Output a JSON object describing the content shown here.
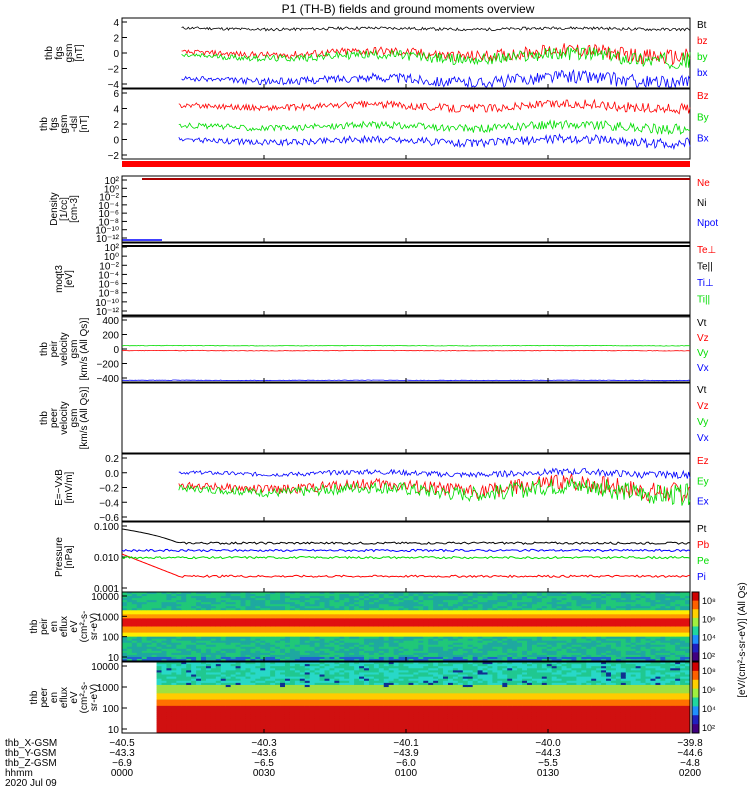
{
  "title": "P1 (TH-B) fields and ground moments overview",
  "chart_data": [
    {
      "type": "line",
      "ylabel": [
        "thb",
        "fgs",
        "gsm",
        "[nT]"
      ],
      "yticks": [
        "4",
        "2",
        "0",
        "−2",
        "−4"
      ],
      "ylim": [
        -4,
        4.5
      ],
      "series": [
        {
          "name": "Bt",
          "color": "#000000",
          "level": 3.2
        },
        {
          "name": "bz",
          "color": "#ff0000",
          "level": 0.2
        },
        {
          "name": "by",
          "color": "#00dd00",
          "level": -0.2
        },
        {
          "name": "bx",
          "color": "#0000ff",
          "level": -3.0
        }
      ]
    },
    {
      "type": "line",
      "ylabel": [
        "thb",
        "fgs",
        "gsm",
        "-dsl",
        "[nT]"
      ],
      "yticks": [
        "6",
        "4",
        "2",
        "0",
        "−2"
      ],
      "ylim": [
        -2.8,
        6.5
      ],
      "series": [
        {
          "name": "Bz",
          "color": "#ff0000",
          "level": 4.2
        },
        {
          "name": "By",
          "color": "#00dd00",
          "level": 1.5
        },
        {
          "name": "Bx",
          "color": "#0000ff",
          "level": -0.4
        }
      ]
    },
    {
      "type": "line",
      "ylabel": [
        "Density",
        "[1/cc]",
        "[cm-3]"
      ],
      "yticks": [
        "10²",
        "10⁰",
        "10⁻²",
        "10⁻⁴",
        "10⁻⁶",
        "10⁻⁸",
        "10⁻¹⁰",
        "10⁻¹²"
      ],
      "ylim": [
        -13,
        2
      ],
      "series": [
        {
          "name": "Ne",
          "color": "#ff0000"
        },
        {
          "name": "Ni",
          "color": "#000000"
        },
        {
          "name": "Npot",
          "color": "#0000ff"
        }
      ]
    },
    {
      "type": "line",
      "ylabel": [
        "moqt3",
        "[eV]"
      ],
      "yticks": [
        "10²",
        "10⁰",
        "10⁻²",
        "10⁻⁴",
        "10⁻⁶",
        "10⁻⁸",
        "10⁻¹⁰",
        "10⁻¹²"
      ],
      "ylim": [
        -13,
        2
      ],
      "series": [
        {
          "name": "Te⊥",
          "color": "#ff0000"
        },
        {
          "name": "Te||",
          "color": "#000000"
        },
        {
          "name": "Ti⊥",
          "color": "#0000ff"
        },
        {
          "name": "Ti||",
          "color": "#00dd00"
        }
      ]
    },
    {
      "type": "line",
      "ylabel": [
        "thb",
        "peir",
        "velocity",
        "gsm",
        "[km/s (All Qs)]"
      ],
      "yticks": [
        "400",
        "200",
        "0",
        "−200",
        "−400"
      ],
      "ylim": [
        -400,
        400
      ],
      "series": [
        {
          "name": "Vt",
          "color": "#000000",
          "level": 400
        },
        {
          "name": "Vz",
          "color": "#ff0000",
          "level": -20
        },
        {
          "name": "Vy",
          "color": "#00dd00",
          "level": 40
        },
        {
          "name": "Vx",
          "color": "#0000ff",
          "level": -380
        }
      ]
    },
    {
      "type": "line",
      "ylabel": [
        "thb",
        "peer",
        "velocity",
        "gsm",
        "[km/s (All Qs)]"
      ],
      "yticks": [],
      "ylim": [
        0,
        1
      ],
      "series": [
        {
          "name": "Vt",
          "color": "#000000"
        },
        {
          "name": "Vz",
          "color": "#ff0000"
        },
        {
          "name": "Vy",
          "color": "#00dd00"
        },
        {
          "name": "Vx",
          "color": "#0000ff"
        }
      ]
    },
    {
      "type": "line",
      "ylabel": [
        "E=−VxB",
        "[mV/m]"
      ],
      "yticks": [
        "0.2",
        "0.0",
        "−0.2",
        "−0.4",
        "−0.6"
      ],
      "ylim": [
        -0.62,
        0.25
      ],
      "series": [
        {
          "name": "Ez",
          "color": "#ff0000",
          "level": -0.18
        },
        {
          "name": "Ey",
          "color": "#00dd00",
          "level": -0.22
        },
        {
          "name": "Ex",
          "color": "#0000ff",
          "level": 0.0
        }
      ]
    },
    {
      "type": "line",
      "ylabel": [
        "Pressure",
        "[nPa]"
      ],
      "yticks": [
        "0.100",
        "0.010",
        "0.001"
      ],
      "yscale": "log",
      "ylim": [
        0.001,
        0.13
      ],
      "series": [
        {
          "name": "Pt",
          "color": "#000000",
          "level": 0.03
        },
        {
          "name": "Pb",
          "color": "#ff0000",
          "level": 0.003
        },
        {
          "name": "Pe",
          "color": "#00dd00",
          "level": 0.011
        },
        {
          "name": "Pi",
          "color": "#0000ff",
          "level": 0.018
        }
      ]
    },
    {
      "type": "heatmap",
      "ylabel": [
        "thb",
        "peir",
        "en",
        "eflux",
        "eV",
        "(cm²-s-",
        "sr-eV)"
      ],
      "yticks": [
        "10000",
        "1000",
        "100",
        "10"
      ],
      "yscale": "log",
      "ylim": [
        5,
        25000
      ],
      "colorbar": {
        "label": "[eV/(cm²-s-sr-eV)]",
        "ticks": [
          "10⁸",
          "10⁶",
          "10⁴",
          "10²"
        ]
      }
    },
    {
      "type": "heatmap",
      "ylabel": [
        "thb",
        "peer",
        "en",
        "eflux",
        "eV",
        "(cm²-s-",
        "sr-eV)"
      ],
      "yticks": [
        "10000",
        "1000",
        "100",
        "10"
      ],
      "yscale": "log",
      "ylim": [
        5,
        25000
      ],
      "colorbar": {
        "label": "[eV/(cm²-s-sr-eV)]",
        "ticks": [
          "10⁸",
          "10⁶",
          "10⁴",
          "10²"
        ]
      }
    }
  ],
  "x_axis": {
    "tick_times": [
      "0000",
      "0030",
      "0100",
      "0130",
      "0200"
    ],
    "rows": [
      {
        "label": "thb_X-GSM",
        "values": [
          "−40.5",
          "−40.3",
          "−40.1",
          "−40.0",
          "−39.8"
        ]
      },
      {
        "label": "thb_Y-GSM",
        "values": [
          "−43.3",
          "−43.6",
          "−43.9",
          "−44.3",
          "−44.6"
        ]
      },
      {
        "label": "thb_Z-GSM",
        "values": [
          "−6.9",
          "−6.5",
          "−6.0",
          "−5.5",
          "−4.8"
        ]
      },
      {
        "label": "hhmm",
        "values": [
          "0000",
          "0030",
          "0100",
          "0130",
          "0200"
        ]
      }
    ],
    "date": "2020 Jul 09"
  },
  "right_axis_label": "[eV/(cm²-s-sr-eV)] (All Qs)"
}
